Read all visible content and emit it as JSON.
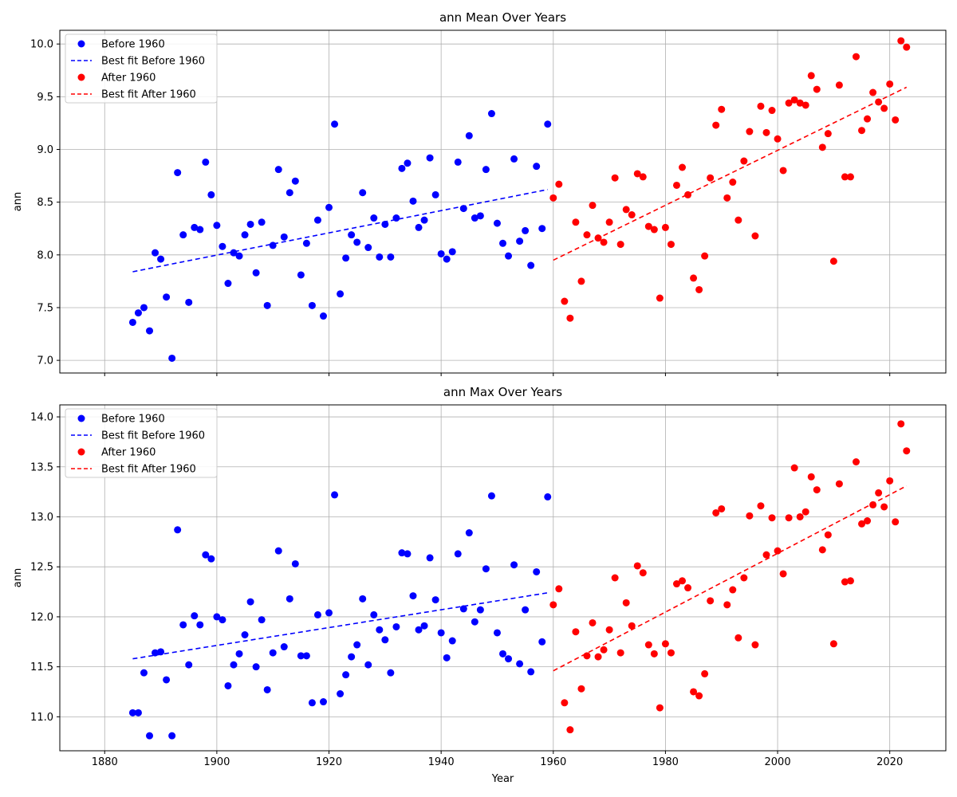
{
  "chart_data": [
    {
      "type": "scatter",
      "title": "ann Mean Over Years",
      "xlabel": "",
      "ylabel": "ann",
      "xlim": [
        1872,
        2030
      ],
      "ylim": [
        6.88,
        10.13
      ],
      "xticks": [
        "1880",
        "1900",
        "1920",
        "1940",
        "1960",
        "1980",
        "2000",
        "2020"
      ],
      "show_xtick_labels": false,
      "yticks": [
        "7.0",
        "7.5",
        "8.0",
        "8.5",
        "9.0",
        "9.5",
        "10.0"
      ],
      "grid": true,
      "legend_position": "upper-left",
      "legend": [
        "Before 1960",
        "Best fit Before 1960",
        "After 1960",
        "Best fit After 1960"
      ],
      "series": [
        {
          "name": "Before 1960",
          "kind": "points",
          "color": "#0000ff",
          "x": [
            1885,
            1886,
            1887,
            1888,
            1889,
            1890,
            1891,
            1892,
            1893,
            1894,
            1895,
            1896,
            1897,
            1898,
            1899,
            1900,
            1901,
            1902,
            1903,
            1904,
            1905,
            1906,
            1907,
            1908,
            1909,
            1910,
            1911,
            1912,
            1913,
            1914,
            1915,
            1916,
            1917,
            1918,
            1919,
            1920,
            1921,
            1922,
            1923,
            1924,
            1925,
            1926,
            1927,
            1928,
            1929,
            1930,
            1931,
            1932,
            1933,
            1934,
            1935,
            1936,
            1937,
            1938,
            1939,
            1940,
            1941,
            1942,
            1943,
            1944,
            1945,
            1946,
            1947,
            1948,
            1949,
            1950,
            1951,
            1952,
            1953,
            1954,
            1955,
            1956,
            1957,
            1958,
            1959
          ],
          "y": [
            7.36,
            7.45,
            7.5,
            7.28,
            8.02,
            7.96,
            7.6,
            7.02,
            8.78,
            8.19,
            7.55,
            8.26,
            8.24,
            8.88,
            8.57,
            8.28,
            8.08,
            7.73,
            8.02,
            7.99,
            8.19,
            8.29,
            7.83,
            8.31,
            7.52,
            8.09,
            8.81,
            8.17,
            8.59,
            8.7,
            7.81,
            8.11,
            7.52,
            8.33,
            7.42,
            8.45,
            9.24,
            7.63,
            7.97,
            8.19,
            8.12,
            8.59,
            8.07,
            8.35,
            7.98,
            8.29,
            7.98,
            8.35,
            8.82,
            8.87,
            8.51,
            8.26,
            8.33,
            8.92,
            8.57,
            8.01,
            7.96,
            8.03,
            8.88,
            8.44,
            9.13,
            8.35,
            8.37,
            8.81,
            9.34,
            8.3,
            8.11,
            7.99,
            8.91,
            8.13,
            8.23,
            7.9,
            8.84,
            8.25,
            9.24
          ]
        },
        {
          "name": "Best fit Before 1960",
          "kind": "line",
          "color": "#0000ff",
          "x": [
            1885,
            1959
          ],
          "y": [
            7.84,
            8.62
          ]
        },
        {
          "name": "After 1960",
          "kind": "points",
          "color": "#ff0000",
          "x": [
            1960,
            1961,
            1962,
            1963,
            1964,
            1965,
            1966,
            1967,
            1968,
            1969,
            1970,
            1971,
            1972,
            1973,
            1974,
            1975,
            1976,
            1977,
            1978,
            1979,
            1980,
            1981,
            1982,
            1983,
            1984,
            1985,
            1986,
            1987,
            1988,
            1989,
            1990,
            1991,
            1992,
            1993,
            1994,
            1995,
            1996,
            1997,
            1998,
            1999,
            2000,
            2001,
            2002,
            2003,
            2004,
            2005,
            2006,
            2007,
            2008,
            2009,
            2010,
            2011,
            2012,
            2013,
            2014,
            2015,
            2016,
            2017,
            2018,
            2019,
            2020,
            2021,
            2022,
            2023
          ],
          "y": [
            8.54,
            8.67,
            7.56,
            7.4,
            8.31,
            7.75,
            8.19,
            8.47,
            8.16,
            8.12,
            8.31,
            8.73,
            8.1,
            8.43,
            8.38,
            8.77,
            8.74,
            8.27,
            8.24,
            7.59,
            8.26,
            8.1,
            8.66,
            8.83,
            8.57,
            7.78,
            7.67,
            7.99,
            8.73,
            9.23,
            9.38,
            8.54,
            8.69,
            8.33,
            8.89,
            9.17,
            8.18,
            9.41,
            9.16,
            9.37,
            9.1,
            8.8,
            9.44,
            9.47,
            9.44,
            9.42,
            9.7,
            9.57,
            9.02,
            9.15,
            7.94,
            9.61,
            8.74,
            8.74,
            9.88,
            9.18,
            9.29,
            9.54,
            9.45,
            9.39,
            9.62,
            9.28,
            10.03,
            9.97
          ]
        },
        {
          "name": "Best fit After 1960",
          "kind": "line",
          "color": "#ff0000",
          "x": [
            1960,
            2023
          ],
          "y": [
            7.95,
            9.59
          ]
        }
      ]
    },
    {
      "type": "scatter",
      "title": "ann Max Over Years",
      "xlabel": "Year",
      "ylabel": "ann",
      "xlim": [
        1872,
        2030
      ],
      "ylim": [
        10.66,
        14.12
      ],
      "xticks": [
        "1880",
        "1900",
        "1920",
        "1940",
        "1960",
        "1980",
        "2000",
        "2020"
      ],
      "show_xtick_labels": true,
      "yticks": [
        "11.0",
        "11.5",
        "12.0",
        "12.5",
        "13.0",
        "13.5",
        "14.0"
      ],
      "grid": true,
      "legend_position": "upper-left",
      "legend": [
        "Before 1960",
        "Best fit Before 1960",
        "After 1960",
        "Best fit After 1960"
      ],
      "series": [
        {
          "name": "Before 1960",
          "kind": "points",
          "color": "#0000ff",
          "x": [
            1885,
            1886,
            1887,
            1888,
            1889,
            1890,
            1891,
            1892,
            1893,
            1894,
            1895,
            1896,
            1897,
            1898,
            1899,
            1900,
            1901,
            1902,
            1903,
            1904,
            1905,
            1906,
            1907,
            1908,
            1909,
            1910,
            1911,
            1912,
            1913,
            1914,
            1915,
            1916,
            1917,
            1918,
            1919,
            1920,
            1921,
            1922,
            1923,
            1924,
            1925,
            1926,
            1927,
            1928,
            1929,
            1930,
            1931,
            1932,
            1933,
            1934,
            1935,
            1936,
            1937,
            1938,
            1939,
            1940,
            1941,
            1942,
            1943,
            1944,
            1945,
            1946,
            1947,
            1948,
            1949,
            1950,
            1951,
            1952,
            1953,
            1954,
            1955,
            1956,
            1957,
            1958,
            1959
          ],
          "y": [
            11.04,
            11.04,
            11.44,
            10.81,
            11.64,
            11.65,
            11.37,
            10.81,
            12.87,
            11.92,
            11.52,
            12.01,
            11.92,
            12.62,
            12.58,
            12.0,
            11.97,
            11.31,
            11.52,
            11.63,
            11.82,
            12.15,
            11.5,
            11.97,
            11.27,
            11.64,
            12.66,
            11.7,
            12.18,
            12.53,
            11.61,
            11.61,
            11.14,
            12.02,
            11.15,
            12.04,
            13.22,
            11.23,
            11.42,
            11.6,
            11.72,
            12.18,
            11.52,
            12.02,
            11.87,
            11.77,
            11.44,
            11.9,
            12.64,
            12.63,
            12.21,
            11.87,
            11.91,
            12.59,
            12.17,
            11.84,
            11.59,
            11.76,
            12.63,
            12.08,
            12.84,
            11.95,
            12.07,
            12.48,
            13.21,
            11.84,
            11.63,
            11.58,
            12.52,
            11.53,
            12.07,
            11.45,
            12.45,
            11.75,
            13.2
          ]
        },
        {
          "name": "Best fit Before 1960",
          "kind": "line",
          "color": "#0000ff",
          "x": [
            1885,
            1959
          ],
          "y": [
            11.58,
            12.24
          ]
        },
        {
          "name": "After 1960",
          "kind": "points",
          "color": "#ff0000",
          "x": [
            1960,
            1961,
            1962,
            1963,
            1964,
            1965,
            1966,
            1967,
            1968,
            1969,
            1970,
            1971,
            1972,
            1973,
            1974,
            1975,
            1976,
            1977,
            1978,
            1979,
            1980,
            1981,
            1982,
            1983,
            1984,
            1985,
            1986,
            1987,
            1988,
            1989,
            1990,
            1991,
            1992,
            1993,
            1994,
            1995,
            1996,
            1997,
            1998,
            1999,
            2000,
            2001,
            2002,
            2003,
            2004,
            2005,
            2006,
            2007,
            2008,
            2009,
            2010,
            2011,
            2012,
            2013,
            2014,
            2015,
            2016,
            2017,
            2018,
            2019,
            2020,
            2021,
            2022,
            2023
          ],
          "y": [
            12.12,
            12.28,
            11.14,
            10.87,
            11.85,
            11.28,
            11.61,
            11.94,
            11.6,
            11.67,
            11.87,
            12.39,
            11.64,
            12.14,
            11.91,
            12.51,
            12.44,
            11.72,
            11.63,
            11.09,
            11.73,
            11.64,
            12.33,
            12.36,
            12.29,
            11.25,
            11.21,
            11.43,
            12.16,
            13.04,
            13.08,
            12.12,
            12.27,
            11.79,
            12.39,
            13.01,
            11.72,
            13.11,
            12.62,
            12.99,
            12.66,
            12.43,
            12.99,
            13.49,
            13.0,
            13.05,
            13.4,
            13.27,
            12.67,
            12.82,
            11.73,
            13.33,
            12.35,
            12.36,
            13.55,
            12.93,
            12.96,
            13.12,
            13.24,
            13.1,
            13.36,
            12.95,
            13.93,
            13.66
          ]
        },
        {
          "name": "Best fit After 1960",
          "kind": "line",
          "color": "#ff0000",
          "x": [
            1960,
            2023
          ],
          "y": [
            11.46,
            13.31
          ]
        }
      ]
    }
  ]
}
